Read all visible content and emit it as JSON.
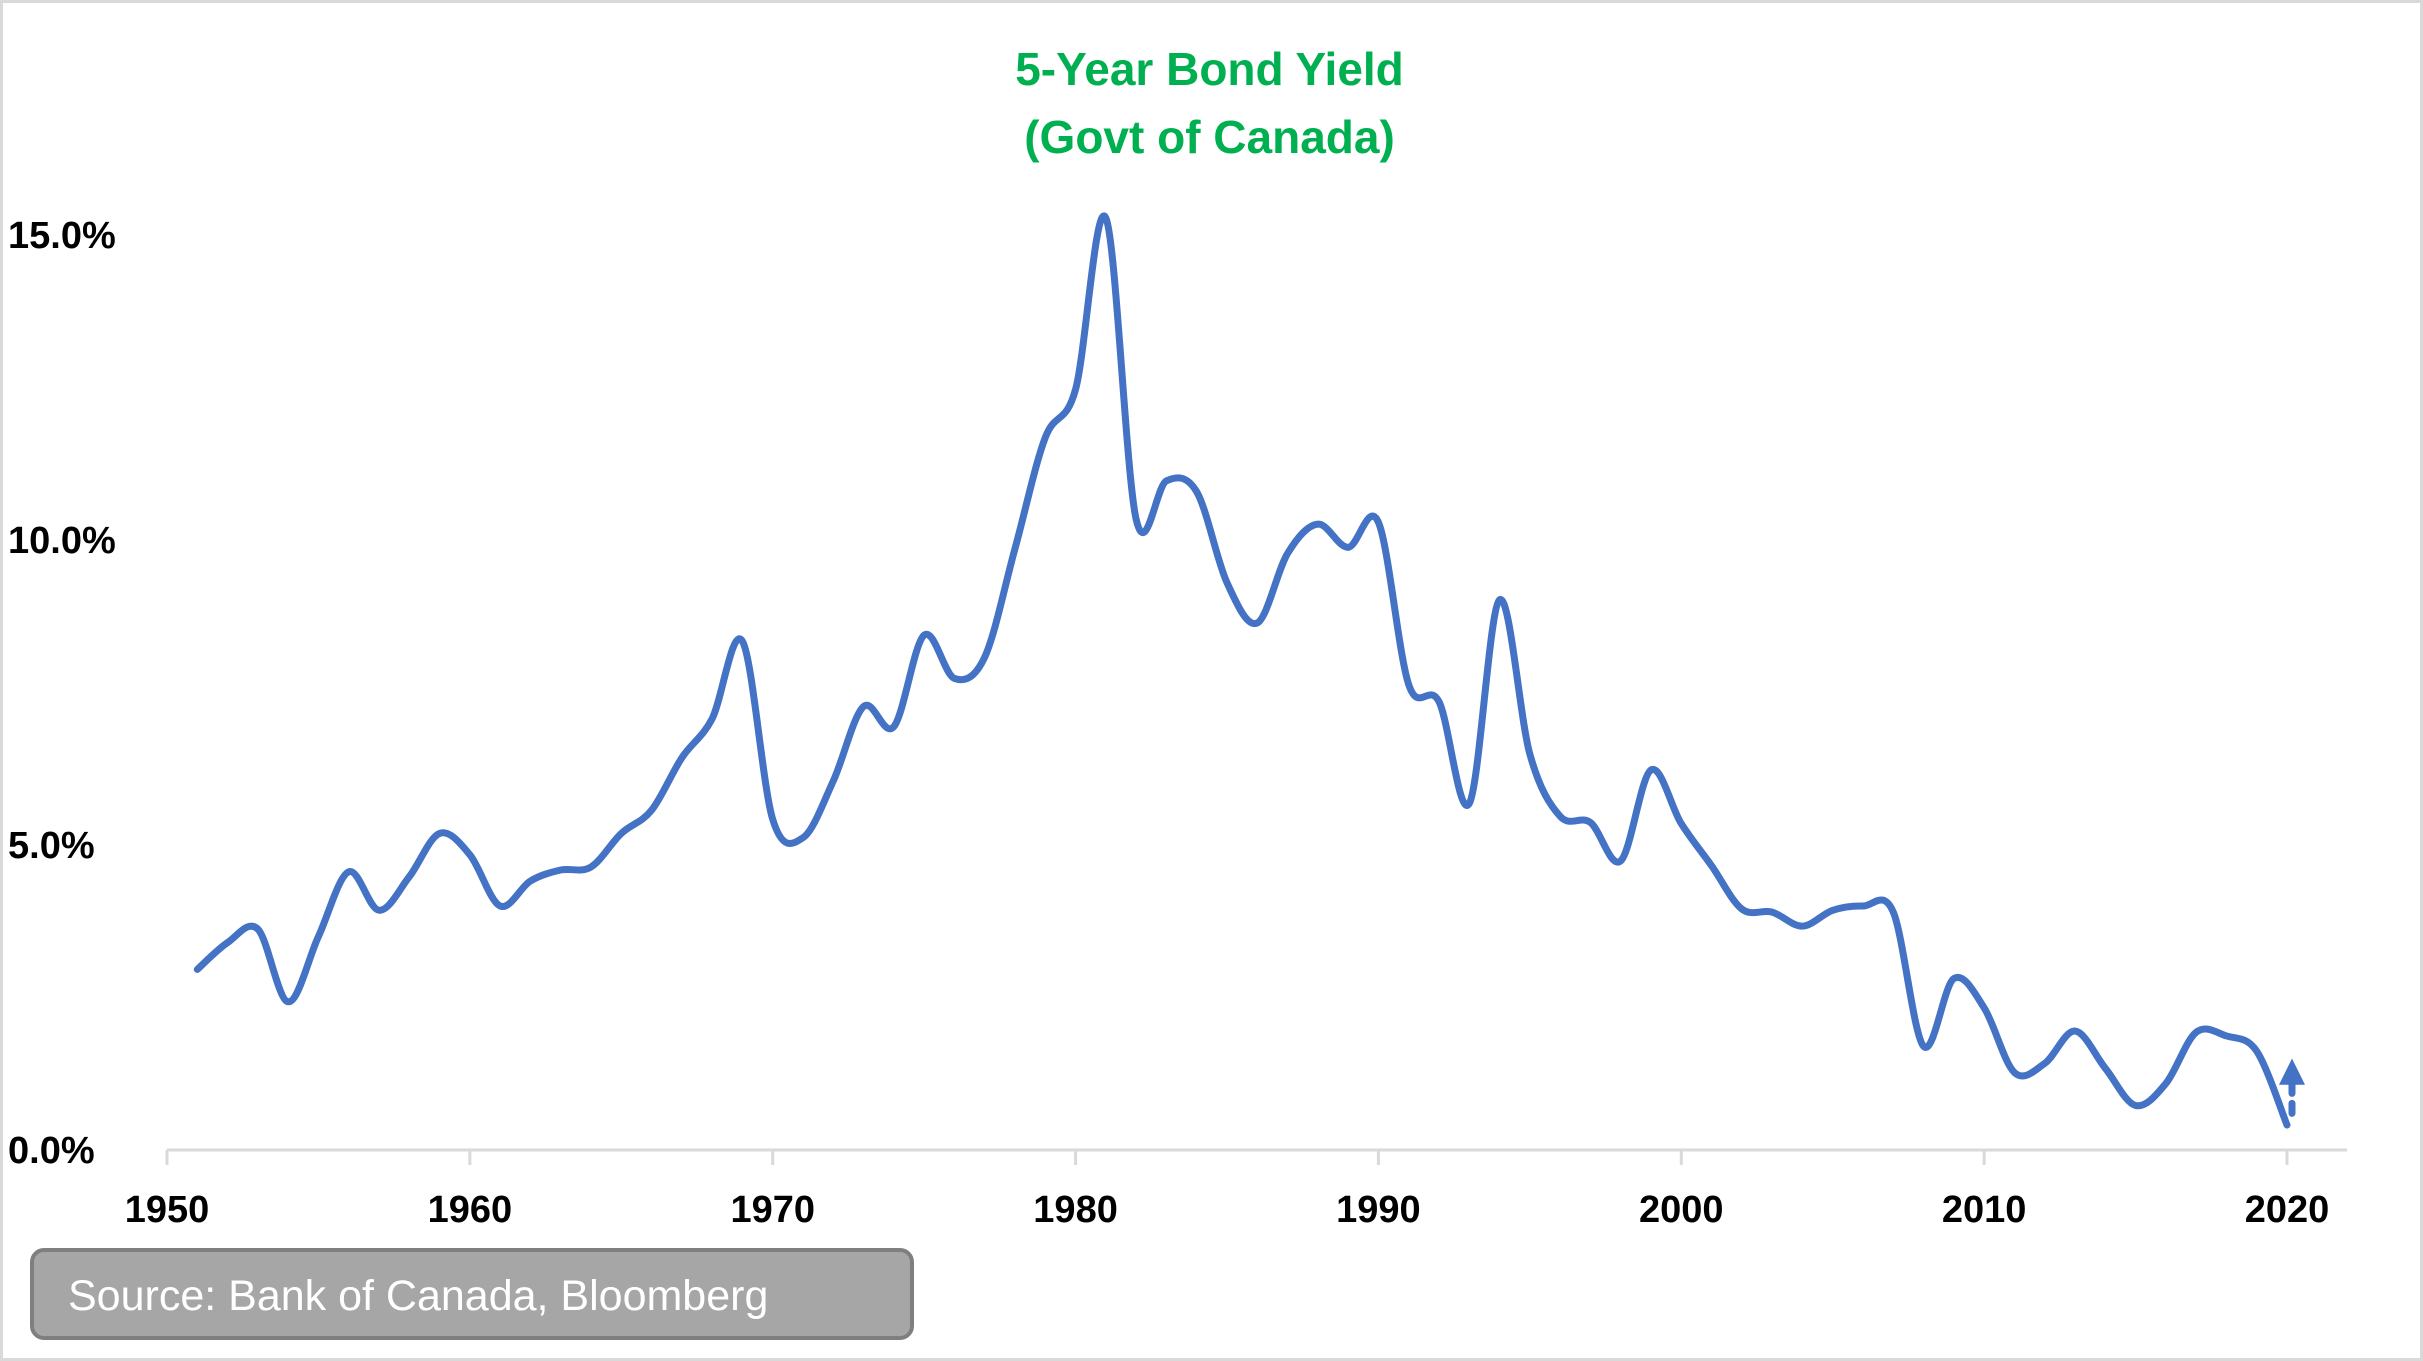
{
  "chart_data": {
    "type": "line",
    "title": "5-Year Bond Yield",
    "subtitle": "(Govt of Canada)",
    "xlabel": "",
    "ylabel": "",
    "xlim": [
      1950,
      2022
    ],
    "ylim": [
      0,
      15
    ],
    "x_ticks": [
      "1950",
      "1960",
      "1970",
      "1980",
      "1990",
      "2000",
      "2010",
      "2020"
    ],
    "y_ticks": [
      "0.0%",
      "5.0%",
      "10.0%",
      "15.0%"
    ],
    "grid": false,
    "line_color": "#4472c4",
    "title_color": "#00b050",
    "series": [
      {
        "name": "5-Year Bond Yield (%)",
        "x": [
          1951,
          1952,
          1953,
          1954,
          1955,
          1956,
          1957,
          1958,
          1959,
          1960,
          1961,
          1962,
          1963,
          1964,
          1965,
          1966,
          1967,
          1968,
          1969,
          1970,
          1971,
          1972,
          1973,
          1974,
          1975,
          1976,
          1977,
          1978,
          1979,
          1980,
          1981,
          1982,
          1983,
          1984,
          1985,
          1986,
          1987,
          1988,
          1989,
          1990,
          1991,
          1992,
          1993,
          1994,
          1995,
          1996,
          1997,
          1998,
          1999,
          2000,
          2001,
          2002,
          2003,
          2004,
          2005,
          2006,
          2007,
          2008,
          2009,
          2010,
          2011,
          2012,
          2013,
          2014,
          2015,
          2016,
          2017,
          2018,
          2019,
          2020
        ],
        "values": [
          2.96,
          3.4,
          3.62,
          2.43,
          3.5,
          4.56,
          3.93,
          4.48,
          5.19,
          4.84,
          4.0,
          4.41,
          4.59,
          4.64,
          5.19,
          5.57,
          6.43,
          7.07,
          8.34,
          5.42,
          5.12,
          6.05,
          7.27,
          6.94,
          8.44,
          7.73,
          8.08,
          9.86,
          11.68,
          12.47,
          15.28,
          10.34,
          10.97,
          10.79,
          9.3,
          8.64,
          9.78,
          10.26,
          9.88,
          10.29,
          7.63,
          7.35,
          5.68,
          9.02,
          6.49,
          5.47,
          5.37,
          4.74,
          6.23,
          5.35,
          4.66,
          3.95,
          3.9,
          3.67,
          3.93,
          4.0,
          3.9,
          1.7,
          2.81,
          2.33,
          1.27,
          1.42,
          1.95,
          1.34,
          0.73,
          1.09,
          1.93,
          1.87,
          1.62,
          0.41
        ]
      }
    ],
    "annotation": {
      "type": "dashed-up-arrow",
      "x": 2020,
      "from": 0.6,
      "to": 1.5
    }
  },
  "source_text": "Source: Bank of Canada, Bloomberg"
}
